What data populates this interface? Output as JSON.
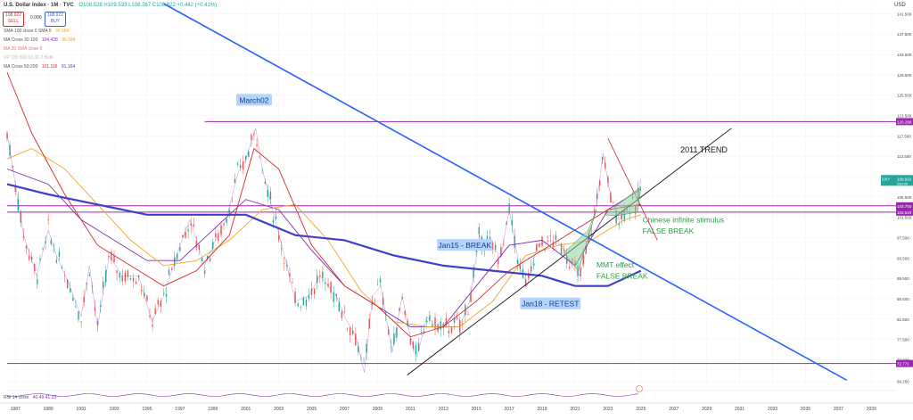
{
  "header": {
    "title": "U.S. Dollar Index · 1M · TVC",
    "ohlc": "O108.528 H109.533 L108.267 C108.922 +0.442 (+0.41%)",
    "sell_price": "108.922",
    "sell_label": "SELL",
    "spread": "0.000",
    "buy_price": "108.922",
    "buy_label": "BUY",
    "currency": "USD"
  },
  "indicators": [
    {
      "label": "SMA 100 close 0 SMA 5",
      "v1": "96.584",
      "v2": "",
      "color": "#f5a623"
    },
    {
      "label": "MA Cross 30 100",
      "v1": "104.428",
      "v2": "96.584",
      "color": "#7b2fb5"
    },
    {
      "label": "MA 20 SMA close 5",
      "v1": "",
      "v2": "",
      "color": "#e57373"
    },
    {
      "label": "VP 720 500 50 30 2 Both",
      "v1": "",
      "v2": "",
      "color": "#bbbbbb"
    },
    {
      "label": "MA Cross 50 200",
      "v1": "101.116",
      "v2": "91.164",
      "color": "#d9252b"
    }
  ],
  "rsi_label": "RSI 14 close",
  "rsi_values": "40.49  41.23",
  "annotations": {
    "march02": "March02",
    "jan15": "Jan15 - BREAK",
    "jan18": "Jan18 - RETEST",
    "trend2011": "2011 TREND",
    "chinese_1": "Chinese infinite stimulus",
    "chinese_2": "FALSE BREAK",
    "mmt_1": "MMT effect",
    "mmt_2": "FALSE BREAK"
  },
  "price_tags": {
    "top": "120.299",
    "current": "108.922",
    "current_name": "DXY",
    "current_sub": "28d 0h",
    "lvl1": "103.755",
    "lvl2": "102.519",
    "bottom": "72.771"
  },
  "colors": {
    "candle_up": "#26a69a",
    "candle_down": "#ef5350",
    "level_line": "#9c27b0",
    "trendline_blue": "#2962ff",
    "trendline_black": "#111111",
    "ma_blue_thick": "#3f3fc8",
    "ma_orange": "#f5a623",
    "ma_red": "#d9252b",
    "ma_purple": "#7b2fb5",
    "annotation_box": "#b3d4fc",
    "annotation_green": "#2e9e46",
    "wedge_green": "#8fd19e"
  },
  "chart_data": {
    "type": "line",
    "title": "U.S. Dollar Index · 1M · TVC",
    "xlabel": "",
    "ylabel": "",
    "x_ticks": [
      "1987",
      "1989",
      "1991",
      "1993",
      "1995",
      "1997",
      "1999",
      "2001",
      "2003",
      "2005",
      "2007",
      "2009",
      "2011",
      "2013",
      "2015",
      "2017",
      "2019",
      "2021",
      "2023",
      "2025",
      "2027",
      "2029",
      "2031",
      "2033",
      "2035",
      "2037",
      "2039"
    ],
    "y_ticks": [
      "141.500",
      "137.500",
      "133.500",
      "129.500",
      "125.500",
      "121.500",
      "117.500",
      "113.500",
      "109.500",
      "105.500",
      "101.500",
      "97.500",
      "93.500",
      "89.500",
      "85.500",
      "81.500",
      "77.500",
      "73.500",
      "69.250"
    ],
    "ylim": [
      68.5,
      143.5
    ],
    "xlim": [
      1986.5,
      2040.5
    ],
    "levels": [
      120.299,
      103.755,
      102.519,
      72.771
    ],
    "series": [
      {
        "x": [
          1986.5,
          1987.5,
          1988.3,
          1989.0,
          1989.5,
          1990.3,
          1991.0,
          1991.5,
          1992.0,
          1992.7,
          1993.5,
          1994.5,
          1995.3,
          1996.0,
          1997.0,
          1997.6,
          1998.5,
          1999.0,
          1999.8,
          2000.5,
          2001.0,
          2001.6,
          2002.0,
          2002.7,
          2003.5,
          2004.0,
          2004.8,
          2005.5,
          2006.5,
          2007.0,
          2007.7,
          2008.2,
          2008.7,
          2009.2,
          2009.9,
          2010.5,
          2011.0,
          2011.4,
          2012.0,
          2012.6,
          2013.3,
          2014.0,
          2014.6,
          2015.2,
          2015.8,
          2016.5,
          2017.0,
          2017.6,
          2018.1,
          2018.7,
          2019.5,
          2020.2,
          2020.8,
          2021.3,
          2021.9,
          2022.3,
          2022.7,
          2023.2,
          2023.7,
          2024.2,
          2024.7,
          2025.0
        ],
        "y": [
          118,
          98,
          90,
          99,
          94,
          88,
          82,
          92,
          80,
          94,
          90,
          90,
          81,
          86,
          96,
          101,
          92,
          96,
          101,
          110,
          113,
          119,
          111,
          102,
          92,
          85,
          86,
          90,
          86,
          82,
          78,
          71,
          86,
          88,
          75,
          86,
          78,
          74,
          82,
          80,
          80,
          80,
          85,
          98,
          96,
          94,
          103,
          92,
          88,
          96,
          97,
          96,
          92,
          90,
          98,
          104,
          114,
          105,
          101,
          104,
          103,
          109
        ]
      },
      {
        "x": [
          1986.5,
          1989,
          1991,
          1993,
          1995,
          1997,
          1999,
          2001,
          2003,
          2005,
          2007,
          2009,
          2011,
          2013,
          2015,
          2017,
          2019,
          2021,
          2023,
          2025
        ],
        "y": [
          111,
          108,
          101,
          97,
          93,
          93,
          99,
          105,
          103,
          95,
          88,
          84,
          80,
          80,
          88,
          96,
          97,
          92,
          103,
          107
        ]
      },
      {
        "x": [
          1986.5,
          1988,
          1990,
          1992,
          1994,
          1996,
          1998,
          2000,
          2002,
          2004,
          2006,
          2008,
          2010,
          2012,
          2014,
          2016,
          2018,
          2020,
          2022,
          2024,
          2025
        ],
        "y": [
          113,
          115,
          111,
          104,
          97,
          92,
          93,
          97,
          103,
          104,
          97,
          87,
          81,
          80,
          80,
          85,
          94,
          96,
          97,
          101,
          102
        ]
      },
      {
        "x": [
          1986.5,
          1989,
          1992,
          1995,
          1998,
          2001,
          2004,
          2007,
          2010,
          2013,
          2016,
          2019,
          2021,
          2023,
          2025
        ],
        "y": [
          108,
          106,
          104,
          102,
          102,
          102,
          98,
          97,
          94,
          92,
          91,
          90,
          88,
          88,
          91
        ]
      },
      {
        "x": [
          1986.5,
          1988,
          1990,
          1992,
          1994,
          1996,
          1998,
          2000,
          2001.5,
          2003,
          2005,
          2007,
          2009,
          2011,
          2013,
          2015,
          2017,
          2019,
          2021,
          2023,
          2025
        ],
        "y": [
          130,
          118,
          106,
          96,
          92,
          88,
          91,
          98,
          115,
          111,
          96,
          88,
          84,
          78,
          80,
          85,
          91,
          95,
          99,
          103,
          104
        ]
      }
    ],
    "trendlines": [
      {
        "x": [
          1996.0,
          2037.5
        ],
        "y": [
          143.5,
          69.5
        ]
      },
      {
        "x": [
          2010.8,
          2030.5
        ],
        "y": [
          70.5,
          119.0
        ]
      }
    ]
  }
}
